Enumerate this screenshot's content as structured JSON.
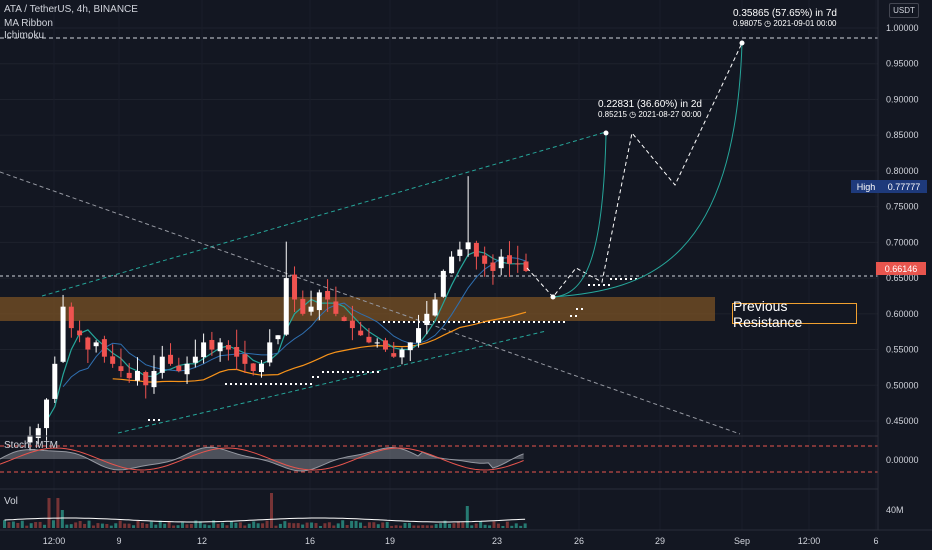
{
  "header": {
    "symbol_line": "ATA / TetherUS, 4h, BINANCE",
    "indicator_1": "MA Ribbon",
    "indicator_2": "Ichimoku",
    "currency_badge": "USDT"
  },
  "annotations": {
    "target_7d": {
      "main": "0.35865 (57.65%) in 7d",
      "sub": "0.98075 ◷ 2021-09-01  00:00"
    },
    "target_2d": {
      "main": "0.22831 (36.60%) in 2d",
      "sub": "0.85215 ◷ 2021-08-27  00:00"
    },
    "resistance_label": "Previous Resistance"
  },
  "price_labels": {
    "high_tag": "High",
    "high_value": "0.77777",
    "last_value": "0.66146"
  },
  "panes": {
    "stoch_label": "Stoch_MTM",
    "stoch_zero": "0.00000",
    "vol_label": "Vol",
    "vol_tick": "40M"
  },
  "colors": {
    "background": "#131722",
    "up_candle": "#ffffff",
    "down_candle": "#ef5350",
    "resistance_zone": "#7a5224",
    "resistance_border": "#f0a030",
    "channel": "#26a69a",
    "projection": "#ffffff",
    "ma_fast": "#26a69a",
    "ma_slow": "#f7931a"
  },
  "chart_data": {
    "type": "candlestick",
    "title": "ATA / TetherUS, 4h, BINANCE",
    "y_ticks": [
      "1.00000",
      "0.95000",
      "0.90000",
      "0.85000",
      "0.80000",
      "0.75000",
      "0.70000",
      "0.65000",
      "0.60000",
      "0.55000",
      "0.50000",
      "0.45000"
    ],
    "ylim": [
      0.42,
      1.02
    ],
    "x_ticks": [
      "12:00",
      "9",
      "12",
      "16",
      "19",
      "23",
      "26",
      "29",
      "Sep",
      "12:00",
      "6"
    ],
    "close_series": [
      0.43,
      0.44,
      0.48,
      0.53,
      0.61,
      0.58,
      0.57,
      0.55,
      0.56,
      0.54,
      0.53,
      0.52,
      0.51,
      0.52,
      0.5,
      0.52,
      0.54,
      0.53,
      0.52,
      0.53,
      0.54,
      0.56,
      0.55,
      0.56,
      0.55,
      0.54,
      0.53,
      0.52,
      0.53,
      0.56,
      0.57,
      0.65,
      0.62,
      0.6,
      0.61,
      0.63,
      0.62,
      0.6,
      0.59,
      0.58,
      0.57,
      0.56,
      0.56,
      0.55,
      0.54,
      0.55,
      0.56,
      0.58,
      0.6,
      0.62,
      0.66,
      0.68,
      0.69,
      0.7,
      0.68,
      0.67,
      0.66,
      0.68,
      0.67,
      0.67,
      0.66
    ],
    "resistance_zone": [
      0.59,
      0.625
    ],
    "projection_points": [
      0.62,
      0.85215,
      0.78,
      0.98075
    ],
    "stoch_zero": 0.0,
    "volume_tick": "40M"
  }
}
